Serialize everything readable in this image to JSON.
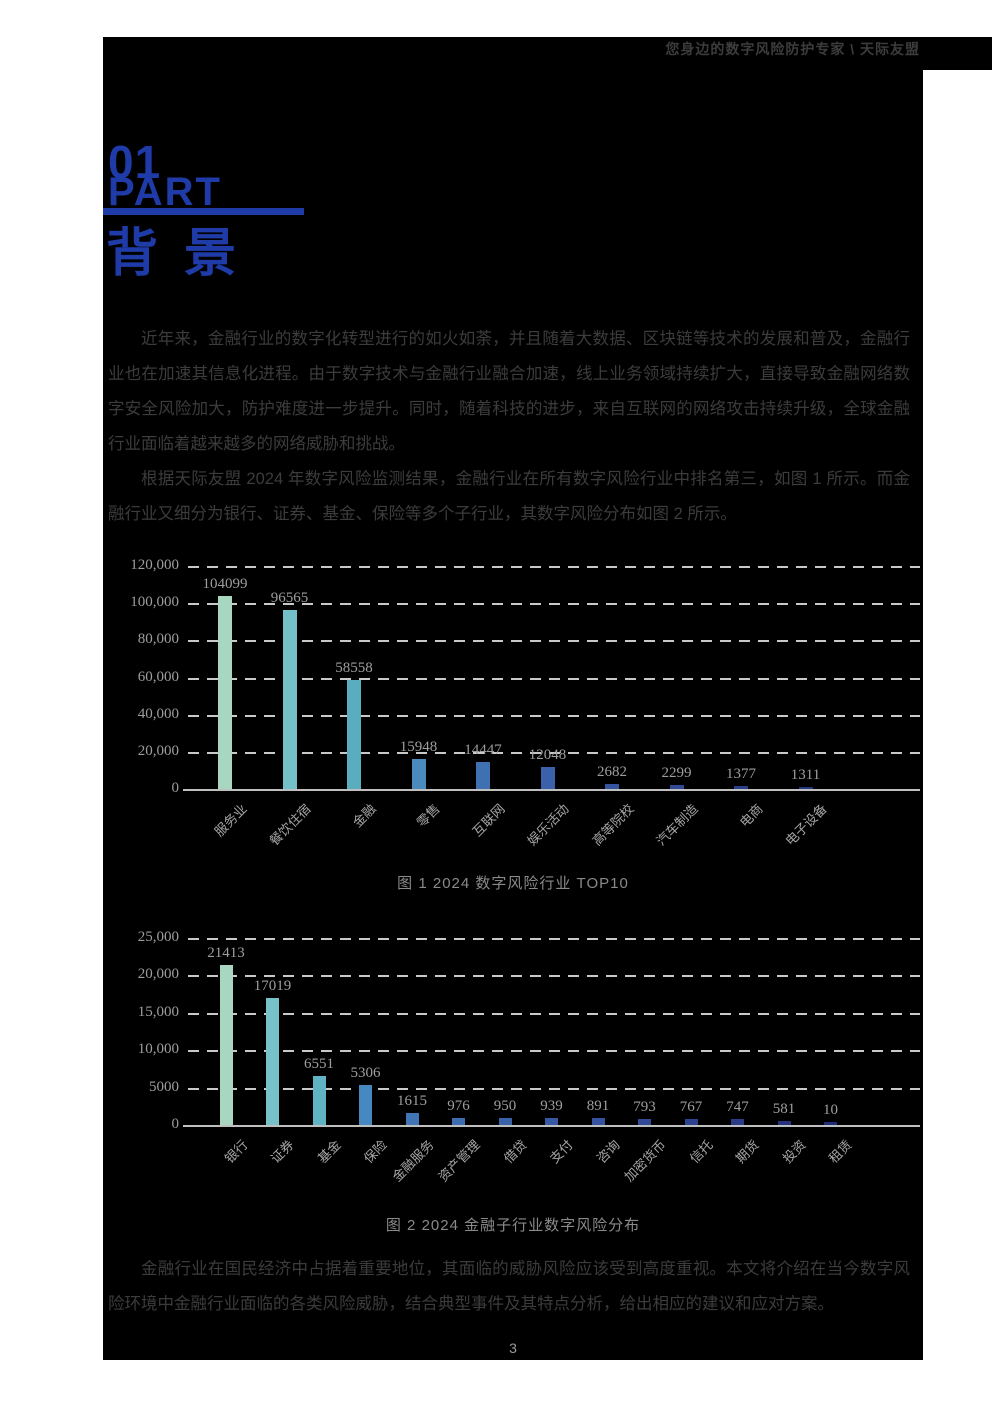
{
  "header": {
    "tagline_left": "您身边的数字风险防护专家 \\ ",
    "tagline_brand": "天际友盟"
  },
  "section": {
    "number": "01",
    "part_label": "PART",
    "title": "背景"
  },
  "paragraphs": {
    "p1": "近年来，金融行业的数字化转型进行的如火如荼，并且随着大数据、区块链等技术的发展和普及，金融行业也在加速其信息化进程。由于数字技术与金融行业融合加速，线上业务领域持续扩大，直接导致金融网络数字安全风险加大，防护难度进一步提升。同时，随着科技的进步，来自互联网的网络攻击持续升级，全球金融行业面临着越来越多的网络威胁和挑战。",
    "p2": "根据天际友盟 2024 年数字风险监测结果，金融行业在所有数字风险行业中排名第三，如图 1 所示。而金融行业又细分为银行、证券、基金、保险等多个子行业，其数字风险分布如图 2 所示。",
    "p3": "金融行业在国民经济中占据着重要地位，其面临的威胁风险应该受到高度重视。本文将介绍在当今数字风险环境中金融行业面临的各类风险威胁，结合典型事件及其特点分析，给出相应的建议和应对方案。"
  },
  "chart_data": [
    {
      "type": "bar",
      "title": "图 1 2024 数字风险行业 TOP10",
      "categories": [
        "服务业",
        "餐饮住宿",
        "金融",
        "零售",
        "互联网",
        "娱乐活动",
        "高等院校",
        "汽车制造",
        "电商",
        "电子设备"
      ],
      "values": [
        104099,
        96565,
        58558,
        15948,
        14447,
        12048,
        2682,
        2299,
        1377,
        1311
      ],
      "xlabel": "",
      "ylabel": "",
      "ylim": [
        0,
        120000
      ],
      "ytick_labels_top_down": [
        "120,000",
        "100,000",
        "80,000",
        "60,000",
        "40,000",
        "20,000",
        "0"
      ],
      "grid": true,
      "legend": "none",
      "bar_colors": [
        "#a9d6c0",
        "#74c0c8",
        "#5aadbf",
        "#4a8abd",
        "#3f70b2",
        "#3a61a9",
        "#35549e",
        "#304994",
        "#2a3f8a",
        "#253681"
      ]
    },
    {
      "type": "bar",
      "title": "图 2 2024 金融子行业数字风险分布",
      "categories": [
        "银行",
        "证券",
        "基金",
        "保险",
        "金融服务",
        "资产管理",
        "借贷",
        "支付",
        "咨询",
        "加密货币",
        "信托",
        "期货",
        "投资",
        "租赁"
      ],
      "values": [
        21413,
        17019,
        6551,
        5306,
        1615,
        976,
        950,
        939,
        891,
        793,
        767,
        747,
        581,
        10
      ],
      "xlabel": "",
      "ylabel": "",
      "ylim": [
        0,
        25000
      ],
      "ytick_labels_top_down": [
        "25,000",
        "20,000",
        "15,000",
        "10,000",
        "5000",
        "0"
      ],
      "grid": true,
      "legend": "none",
      "bar_colors": [
        "#a9d6c0",
        "#77c1c8",
        "#60b3c3",
        "#4589c0",
        "#4076b6",
        "#3d6cb0",
        "#3a62a9",
        "#3759a3",
        "#34529d",
        "#314a96",
        "#2d428e",
        "#293a87",
        "#25337f",
        "#212c78"
      ]
    }
  ],
  "footer": {
    "page_number": "3"
  },
  "colors": {
    "accent_blue": "#1e3ba8",
    "body_text": "#3c3c3c",
    "tagline_text": "#3c3c3c",
    "chart_text": "#9e9e9e",
    "category_text": "#a6a6a6",
    "caption_text": "#8a8a8a",
    "grid_line": "#c9c9c9",
    "axis_line": "#bfbfbf",
    "content_bg": "#000000",
    "page_bg": "#ffffff",
    "page_number_text": "#9a9a9a"
  }
}
